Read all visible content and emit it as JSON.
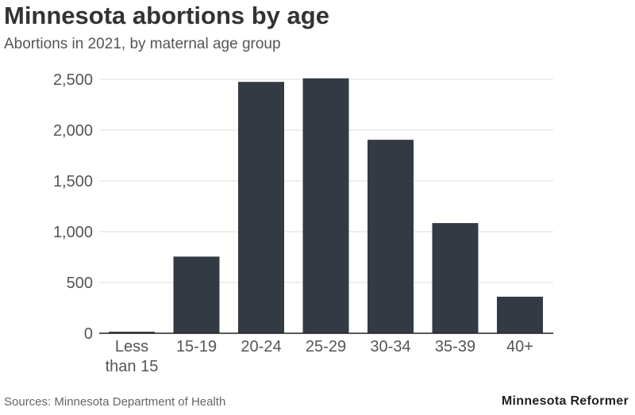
{
  "header": {
    "title": "Minnesota abortions by age",
    "subtitle": "Abortions in 2021, by maternal age group"
  },
  "footer": {
    "source": "Sources: Minnesota Department of Health",
    "brand": "Minnesota Reformer"
  },
  "colors": {
    "bar": "#333a44",
    "grid": "#dddddd",
    "axis": "#222222",
    "tick_text": "#555555"
  },
  "chart_data": {
    "type": "bar",
    "categories": [
      "Less than 15",
      "15-19",
      "20-24",
      "25-29",
      "30-34",
      "35-39",
      "40+"
    ],
    "category_lines": [
      [
        "Less",
        "than 15"
      ],
      [
        "15-19"
      ],
      [
        "20-24"
      ],
      [
        "25-29"
      ],
      [
        "30-34"
      ],
      [
        "35-39"
      ],
      [
        "40+"
      ]
    ],
    "values": [
      15,
      755,
      2475,
      2510,
      1905,
      1085,
      360
    ],
    "ylim": [
      0,
      2500
    ],
    "yticks": [
      0,
      500,
      1000,
      1500,
      2000,
      2500
    ],
    "ytick_labels": [
      "0",
      "500",
      "1,000",
      "1,500",
      "2,000",
      "2,500"
    ],
    "grid": true,
    "xlabel": "",
    "ylabel": ""
  }
}
